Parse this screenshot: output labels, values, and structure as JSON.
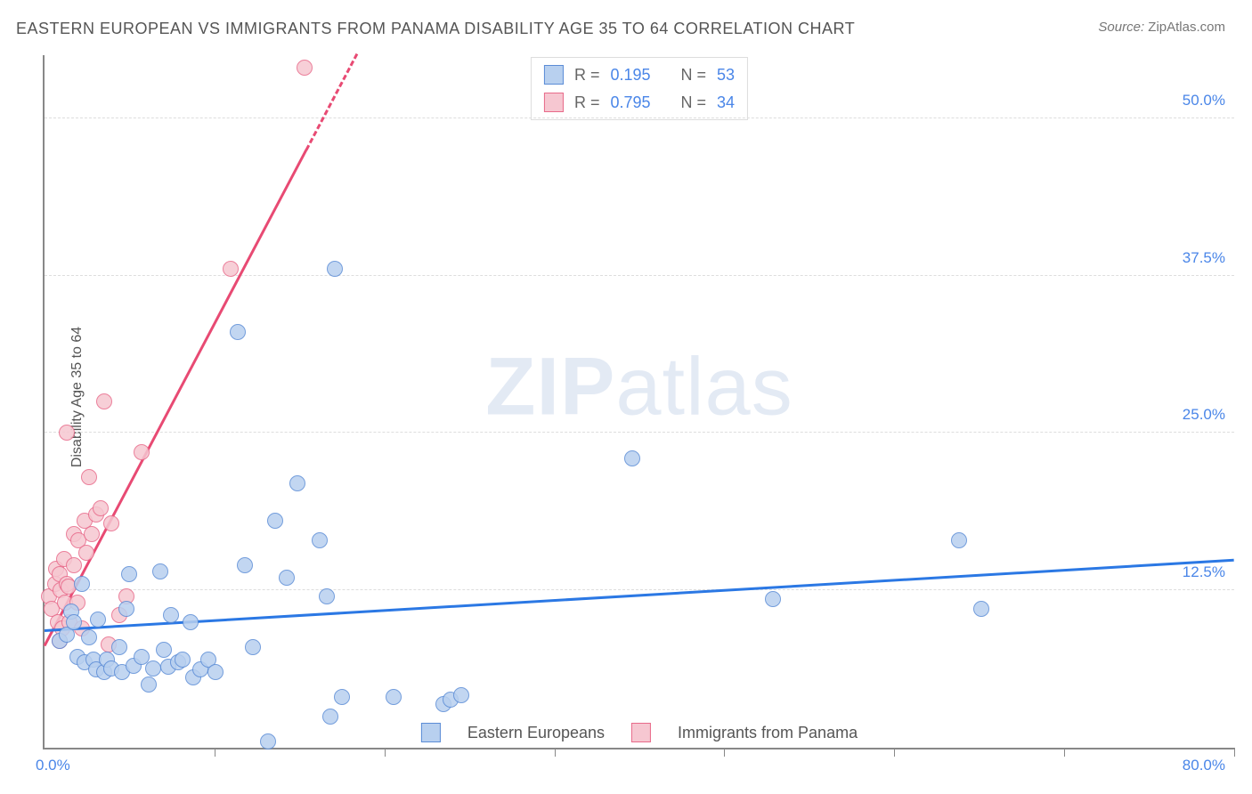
{
  "title": "EASTERN EUROPEAN VS IMMIGRANTS FROM PANAMA DISABILITY AGE 35 TO 64 CORRELATION CHART",
  "source_label": "Source:",
  "source_value": "ZipAtlas.com",
  "ylabel": "Disability Age 35 to 64",
  "watermark_a": "ZIP",
  "watermark_b": "atlas",
  "chart": {
    "type": "scatter",
    "xlim": [
      0,
      80
    ],
    "ylim": [
      0,
      55
    ],
    "xmin_label": "0.0%",
    "xmax_label": "80.0%",
    "yticks": [
      12.5,
      25.0,
      37.5,
      50.0
    ],
    "ytick_labels": [
      "12.5%",
      "25.0%",
      "37.5%",
      "50.0%"
    ],
    "xtick_positions": [
      11.43,
      22.86,
      34.29,
      45.71,
      57.14,
      68.57,
      80.0
    ],
    "grid_color": "#dddddd",
    "axis_color": "#888888",
    "background": "#ffffff",
    "point_radius": 9,
    "point_border_width": 1.5
  },
  "series": [
    {
      "name": "Eastern Europeans",
      "fill": "#b8d0ef",
      "stroke": "#5b8cd6",
      "line_color": "#2b78e4",
      "R": "0.195",
      "N": "53",
      "trend": {
        "x1": 0,
        "y1": 9.2,
        "x2": 80,
        "y2": 14.8
      },
      "points": [
        [
          1.0,
          8.5
        ],
        [
          1.5,
          9.0
        ],
        [
          1.8,
          10.8
        ],
        [
          2.0,
          10.0
        ],
        [
          2.2,
          7.2
        ],
        [
          2.5,
          13.0
        ],
        [
          2.7,
          6.8
        ],
        [
          3.0,
          8.8
        ],
        [
          3.3,
          7.0
        ],
        [
          3.5,
          6.2
        ],
        [
          3.6,
          10.2
        ],
        [
          4.0,
          6.0
        ],
        [
          4.2,
          7.0
        ],
        [
          4.5,
          6.3
        ],
        [
          5.0,
          8.0
        ],
        [
          5.2,
          6.0
        ],
        [
          5.5,
          11.0
        ],
        [
          5.7,
          13.8
        ],
        [
          6.0,
          6.5
        ],
        [
          6.5,
          7.2
        ],
        [
          7.0,
          5.0
        ],
        [
          7.3,
          6.3
        ],
        [
          7.8,
          14.0
        ],
        [
          8.0,
          7.8
        ],
        [
          8.3,
          6.4
        ],
        [
          8.5,
          10.5
        ],
        [
          9.0,
          6.8
        ],
        [
          9.3,
          7.0
        ],
        [
          9.8,
          10.0
        ],
        [
          10.0,
          5.6
        ],
        [
          10.5,
          6.2
        ],
        [
          11.0,
          7.0
        ],
        [
          11.5,
          6.0
        ],
        [
          13.0,
          33.0
        ],
        [
          13.5,
          14.5
        ],
        [
          14.0,
          8.0
        ],
        [
          15.0,
          0.5
        ],
        [
          15.5,
          18.0
        ],
        [
          16.3,
          13.5
        ],
        [
          17.0,
          21.0
        ],
        [
          18.5,
          16.5
        ],
        [
          19.0,
          12.0
        ],
        [
          19.2,
          2.5
        ],
        [
          19.5,
          38.0
        ],
        [
          20.0,
          4.0
        ],
        [
          23.5,
          4.0
        ],
        [
          26.8,
          3.5
        ],
        [
          27.3,
          3.8
        ],
        [
          28.0,
          4.2
        ],
        [
          39.5,
          23.0
        ],
        [
          49.0,
          11.8
        ],
        [
          61.5,
          16.5
        ],
        [
          63.0,
          11.0
        ]
      ]
    },
    {
      "name": "Immigrants from Panama",
      "fill": "#f6c7d1",
      "stroke": "#e86a8a",
      "line_color": "#e84a73",
      "R": "0.795",
      "N": "34",
      "trend": {
        "x1": 0,
        "y1": 8.0,
        "x2": 21,
        "y2": 55.0
      },
      "trend_dash_from_x": 17.6,
      "points": [
        [
          0.3,
          12.0
        ],
        [
          0.5,
          11.0
        ],
        [
          0.7,
          13.0
        ],
        [
          0.8,
          14.2
        ],
        [
          0.9,
          10.0
        ],
        [
          1.0,
          8.5
        ],
        [
          1.0,
          13.8
        ],
        [
          1.1,
          12.5
        ],
        [
          1.2,
          9.5
        ],
        [
          1.3,
          15.0
        ],
        [
          1.4,
          11.5
        ],
        [
          1.5,
          13.0
        ],
        [
          1.5,
          25.0
        ],
        [
          1.6,
          12.8
        ],
        [
          1.7,
          10.0
        ],
        [
          2.0,
          14.5
        ],
        [
          2.0,
          17.0
        ],
        [
          2.2,
          11.5
        ],
        [
          2.3,
          16.5
        ],
        [
          2.5,
          9.5
        ],
        [
          2.7,
          18.0
        ],
        [
          2.8,
          15.5
        ],
        [
          3.0,
          21.5
        ],
        [
          3.2,
          17.0
        ],
        [
          3.5,
          18.5
        ],
        [
          3.8,
          19.0
        ],
        [
          4.0,
          27.5
        ],
        [
          4.5,
          17.8
        ],
        [
          5.0,
          10.5
        ],
        [
          5.5,
          12.0
        ],
        [
          6.5,
          23.5
        ],
        [
          12.5,
          38.0
        ],
        [
          17.5,
          54.0
        ],
        [
          4.3,
          8.2
        ]
      ]
    }
  ],
  "stats_header": {
    "R_label": "R  =",
    "N_label": "N  ="
  },
  "legend": {
    "series1": "Eastern Europeans",
    "series2": "Immigrants from Panama"
  }
}
